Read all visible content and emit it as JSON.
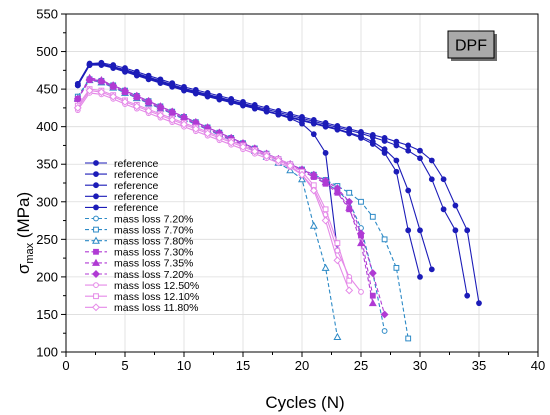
{
  "chart_data": {
    "type": "line",
    "xlabel": "Cycles (N)",
    "ylabel_main": "σ",
    "ylabel_sub": "max",
    "ylabel_unit": " (MPa)",
    "xlim": [
      0,
      40
    ],
    "ylim": [
      100,
      550
    ],
    "xticks": [
      0,
      5,
      10,
      15,
      20,
      25,
      30,
      35,
      40
    ],
    "yticks": [
      100,
      150,
      200,
      250,
      300,
      350,
      400,
      450,
      500,
      550
    ],
    "grid": true,
    "legend_position": "lower-left",
    "badge": "DPF",
    "series": [
      {
        "name": "reference",
        "color": "#1c1cb8",
        "marker": "circle",
        "filled": true,
        "dashed": false,
        "x": [
          1,
          2,
          3,
          4,
          5,
          6,
          7,
          8,
          9,
          10,
          11,
          12,
          13,
          14,
          15,
          16,
          17,
          18,
          19,
          20,
          21,
          22,
          23,
          24,
          25,
          26,
          27,
          28,
          29,
          30,
          31,
          32,
          33,
          34,
          35
        ],
        "y": [
          457,
          484,
          485,
          482,
          478,
          473,
          468,
          463,
          458,
          453,
          449,
          445,
          441,
          437,
          433,
          429,
          425,
          421,
          417,
          413,
          409,
          405,
          401,
          397,
          393,
          389,
          385,
          380,
          375,
          368,
          355,
          330,
          295,
          262,
          165
        ]
      },
      {
        "name": "reference",
        "color": "#1c1cb8",
        "marker": "circle",
        "filled": true,
        "dashed": false,
        "x": [
          1,
          2,
          3,
          4,
          5,
          6,
          7,
          8,
          9,
          10,
          11,
          12,
          13,
          14,
          15,
          16,
          17,
          18,
          19,
          20,
          21,
          22,
          23,
          24,
          25,
          26,
          27,
          28,
          29,
          30,
          31,
          32,
          33,
          34
        ],
        "y": [
          455,
          482,
          483,
          480,
          476,
          471,
          466,
          461,
          456,
          451,
          447,
          443,
          439,
          435,
          431,
          427,
          423,
          419,
          415,
          411,
          407,
          403,
          399,
          395,
          391,
          386,
          381,
          375,
          368,
          358,
          330,
          290,
          262,
          175
        ]
      },
      {
        "name": "reference",
        "color": "#1c1cb8",
        "marker": "circle",
        "filled": true,
        "dashed": false,
        "x": [
          1,
          2,
          3,
          4,
          5,
          6,
          7,
          8,
          9,
          10,
          11,
          12,
          13,
          14,
          15,
          16,
          17,
          18,
          19,
          20,
          21,
          22,
          23,
          24,
          25,
          26,
          27,
          28,
          29,
          30,
          31
        ],
        "y": [
          455,
          483,
          483,
          479,
          474,
          469,
          464,
          459,
          454,
          449,
          445,
          441,
          437,
          433,
          429,
          425,
          421,
          417,
          413,
          409,
          405,
          401,
          397,
          392,
          387,
          380,
          370,
          355,
          315,
          262,
          210
        ]
      },
      {
        "name": "reference",
        "color": "#1c1cb8",
        "marker": "circle",
        "filled": true,
        "dashed": false,
        "x": [
          1,
          2,
          3,
          4,
          5,
          6,
          7,
          8,
          9,
          10,
          11,
          12,
          13,
          14,
          15,
          16,
          17,
          18,
          19,
          20,
          21,
          22,
          23,
          24,
          25,
          26,
          27,
          28,
          29,
          30
        ],
        "y": [
          455,
          482,
          482,
          478,
          473,
          468,
          463,
          458,
          453,
          448,
          444,
          440,
          436,
          432,
          428,
          424,
          420,
          416,
          412,
          408,
          404,
          400,
          396,
          391,
          385,
          377,
          365,
          340,
          262,
          200
        ]
      },
      {
        "name": "reference",
        "color": "#1c1cb8",
        "marker": "circle",
        "filled": true,
        "dashed": false,
        "x": [
          1,
          2,
          3,
          4,
          5,
          6,
          7,
          8,
          9,
          10,
          11,
          12,
          13,
          14,
          15,
          16,
          17,
          18,
          19,
          20,
          21,
          22,
          23
        ],
        "y": [
          457,
          483,
          484,
          480,
          475,
          470,
          465,
          460,
          455,
          450,
          446,
          442,
          438,
          434,
          430,
          426,
          421,
          416,
          411,
          404,
          390,
          365,
          235
        ]
      },
      {
        "name": "mass loss 7.20%",
        "color": "#2d8ac6",
        "marker": "circle",
        "filled": false,
        "dashed": true,
        "x": [
          1,
          2,
          3,
          4,
          5,
          6,
          7,
          8,
          9,
          10,
          11,
          12,
          13,
          14,
          15,
          16,
          17,
          18,
          19,
          20,
          21,
          22,
          23,
          24,
          25,
          26,
          27
        ],
        "y": [
          440,
          464,
          460,
          453,
          446,
          439,
          432,
          425,
          418,
          411,
          404,
          397,
          390,
          383,
          376,
          369,
          362,
          355,
          348,
          341,
          333,
          325,
          315,
          300,
          265,
          205,
          128
        ]
      },
      {
        "name": "mass loss 7.70%",
        "color": "#2d8ac6",
        "marker": "square",
        "filled": false,
        "dashed": true,
        "x": [
          1,
          2,
          3,
          4,
          5,
          6,
          7,
          8,
          9,
          10,
          11,
          12,
          13,
          14,
          15,
          16,
          17,
          18,
          19,
          20,
          21,
          22,
          23,
          24,
          25,
          26,
          27,
          28,
          29
        ],
        "y": [
          440,
          463,
          461,
          455,
          448,
          441,
          434,
          427,
          420,
          413,
          406,
          399,
          392,
          385,
          378,
          371,
          364,
          357,
          350,
          343,
          336,
          329,
          321,
          312,
          300,
          280,
          250,
          212,
          118
        ]
      },
      {
        "name": "mass loss 7.80%",
        "color": "#2d8ac6",
        "marker": "triangle",
        "filled": false,
        "dashed": true,
        "x": [
          1,
          2,
          3,
          4,
          5,
          6,
          7,
          8,
          9,
          10,
          11,
          12,
          13,
          14,
          15,
          16,
          17,
          18,
          19,
          20,
          21,
          22,
          23
        ],
        "y": [
          438,
          462,
          459,
          452,
          445,
          438,
          431,
          424,
          417,
          410,
          403,
          396,
          389,
          382,
          375,
          368,
          360,
          352,
          342,
          330,
          268,
          212,
          120
        ]
      },
      {
        "name": "mass loss 7.30%",
        "color": "#b03ad4",
        "marker": "square",
        "filled": true,
        "dashed": true,
        "x": [
          1,
          2,
          3,
          4,
          5,
          6,
          7,
          8,
          9,
          10,
          11,
          12,
          13,
          14,
          15,
          16,
          17,
          18,
          19,
          20,
          21,
          22,
          23,
          24,
          25,
          26
        ],
        "y": [
          437,
          462,
          460,
          453,
          446,
          439,
          432,
          425,
          418,
          411,
          404,
          397,
          390,
          383,
          376,
          369,
          362,
          355,
          348,
          341,
          333,
          324,
          312,
          290,
          255,
          175
        ]
      },
      {
        "name": "mass loss 7.35%",
        "color": "#b03ad4",
        "marker": "triangle",
        "filled": true,
        "dashed": true,
        "x": [
          1,
          2,
          3,
          4,
          5,
          6,
          7,
          8,
          9,
          10,
          11,
          12,
          13,
          14,
          15,
          16,
          17,
          18,
          19,
          20,
          21,
          22,
          23,
          24,
          25,
          26
        ],
        "y": [
          437,
          465,
          462,
          455,
          448,
          441,
          434,
          427,
          420,
          413,
          406,
          399,
          392,
          385,
          378,
          371,
          364,
          357,
          350,
          343,
          335,
          326,
          314,
          292,
          245,
          165
        ]
      },
      {
        "name": "mass loss 7.20%",
        "color": "#b03ad4",
        "marker": "diamond",
        "filled": true,
        "dashed": true,
        "x": [
          1,
          2,
          3,
          4,
          5,
          6,
          7,
          8,
          9,
          10,
          11,
          12,
          13,
          14,
          15,
          16,
          17,
          18,
          19,
          20,
          21,
          22,
          23,
          24,
          25,
          26,
          27
        ],
        "y": [
          437,
          463,
          461,
          455,
          448,
          441,
          434,
          427,
          420,
          413,
          406,
          399,
          392,
          385,
          378,
          371,
          364,
          357,
          350,
          343,
          336,
          328,
          318,
          300,
          258,
          205,
          150
        ]
      },
      {
        "name": "mass loss 12.50%",
        "color": "#e58ae8",
        "marker": "circle",
        "filled": false,
        "dashed": false,
        "x": [
          1,
          2,
          3,
          4,
          5,
          6,
          7,
          8,
          9,
          10,
          11,
          12,
          13,
          14,
          15,
          16,
          17,
          18,
          19,
          20,
          21,
          22,
          23,
          24,
          25
        ],
        "y": [
          422,
          445,
          443,
          437,
          430,
          424,
          418,
          412,
          406,
          400,
          394,
          388,
          382,
          376,
          370,
          364,
          358,
          352,
          346,
          336,
          318,
          283,
          235,
          200,
          180
        ]
      },
      {
        "name": "mass loss 12.10%",
        "color": "#e58ae8",
        "marker": "square",
        "filled": false,
        "dashed": false,
        "x": [
          1,
          2,
          3,
          4,
          5,
          6,
          7,
          8,
          9,
          10,
          11,
          12,
          13,
          14,
          15,
          16,
          17,
          18,
          19,
          20,
          21,
          22,
          23,
          24
        ],
        "y": [
          428,
          450,
          448,
          442,
          435,
          429,
          423,
          417,
          411,
          405,
          399,
          393,
          387,
          381,
          375,
          369,
          363,
          357,
          350,
          340,
          322,
          290,
          245,
          195
        ]
      },
      {
        "name": "mass loss 11.80%",
        "color": "#e58ae8",
        "marker": "diamond",
        "filled": false,
        "dashed": false,
        "x": [
          1,
          2,
          3,
          4,
          5,
          6,
          7,
          8,
          9,
          10,
          11,
          12,
          13,
          14,
          15,
          16,
          17,
          18,
          19,
          20,
          21,
          22,
          23,
          24
        ],
        "y": [
          425,
          448,
          446,
          440,
          433,
          427,
          421,
          415,
          409,
          403,
          397,
          391,
          385,
          379,
          373,
          367,
          361,
          355,
          348,
          336,
          315,
          275,
          222,
          182
        ]
      }
    ]
  }
}
